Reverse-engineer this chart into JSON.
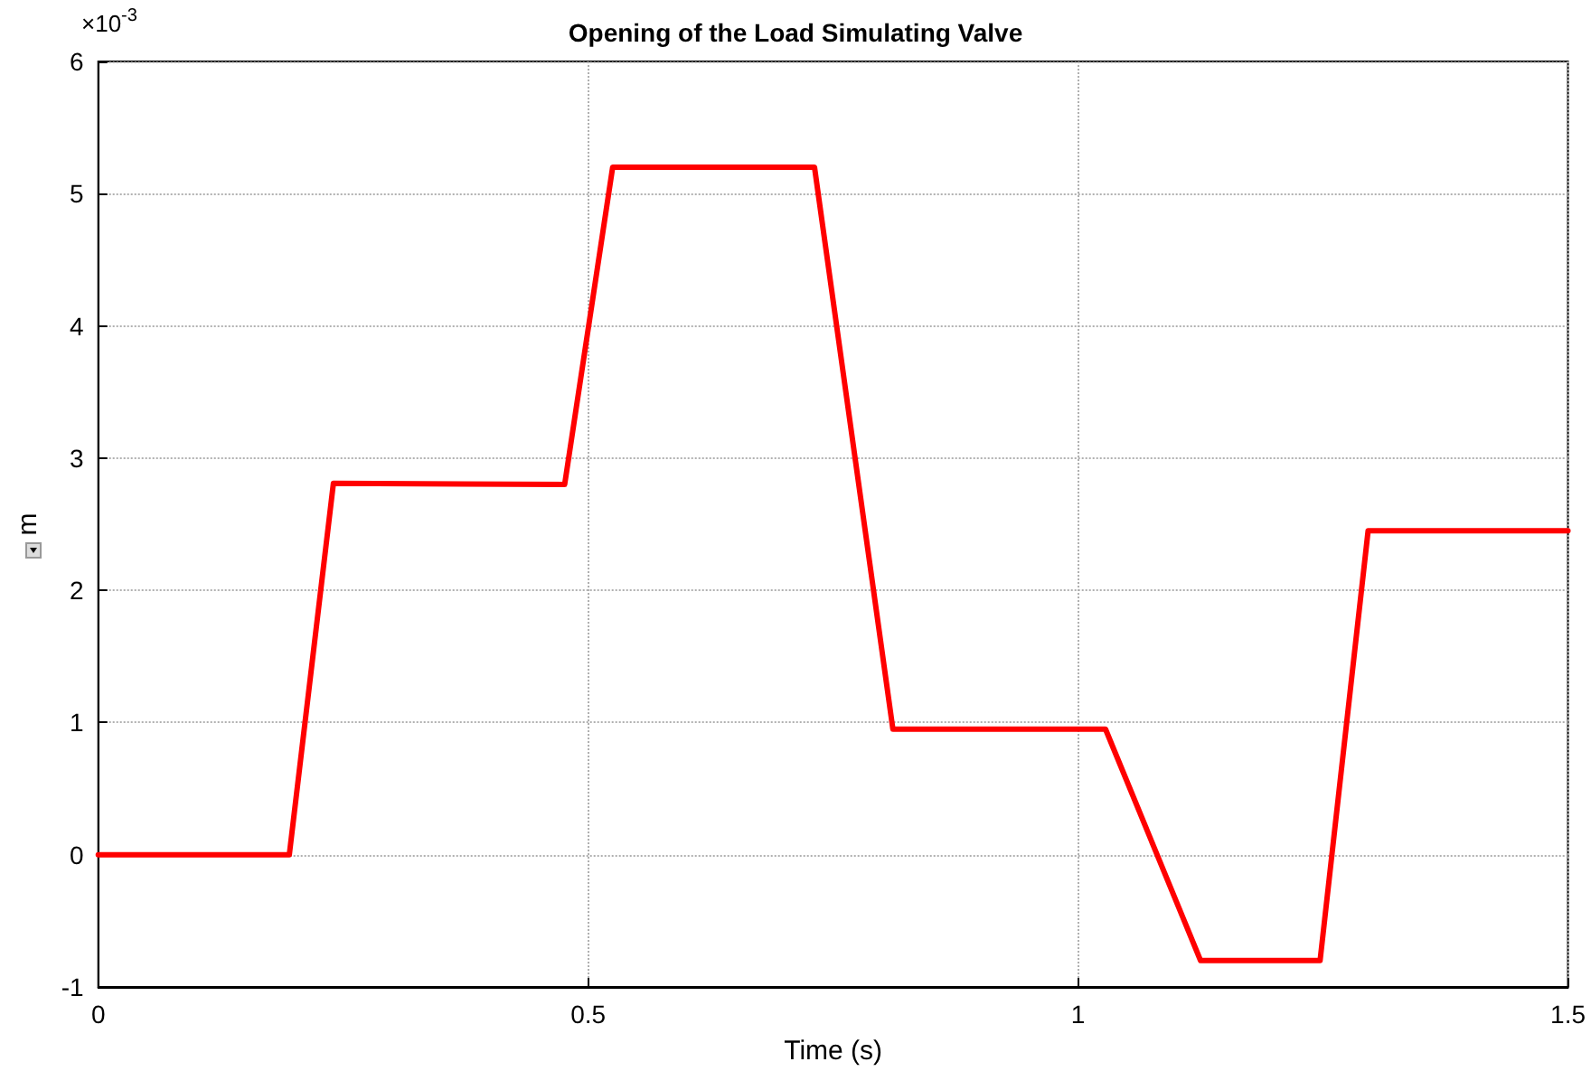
{
  "chart_data": {
    "type": "line",
    "title": "Opening of the Load Simulating Valve",
    "xlabel": "Time (s)",
    "ylabel": "m",
    "annotations": [
      "×10$^{-3}$"
    ],
    "x": [
      0,
      0.195,
      0.24,
      0.476,
      0.525,
      0.731,
      0.811,
      1.028,
      1.125,
      1.247,
      1.296,
      1.5
    ],
    "series": [
      {
        "color": "#ff0000",
        "values": [
          0,
          0,
          2.81,
          2.8,
          5.2,
          5.2,
          0.95,
          0.95,
          -0.8,
          -0.8,
          2.45,
          2.45
        ]
      }
    ],
    "xlim": [
      0,
      1.5
    ],
    "xticks": [
      0,
      0.5,
      1,
      1.5
    ],
    "ylim": [
      -1,
      6
    ],
    "yticks": [
      -1,
      0,
      1,
      2,
      3,
      4,
      5,
      6
    ],
    "grid": true,
    "marker": "none",
    "line_style": "solid"
  }
}
